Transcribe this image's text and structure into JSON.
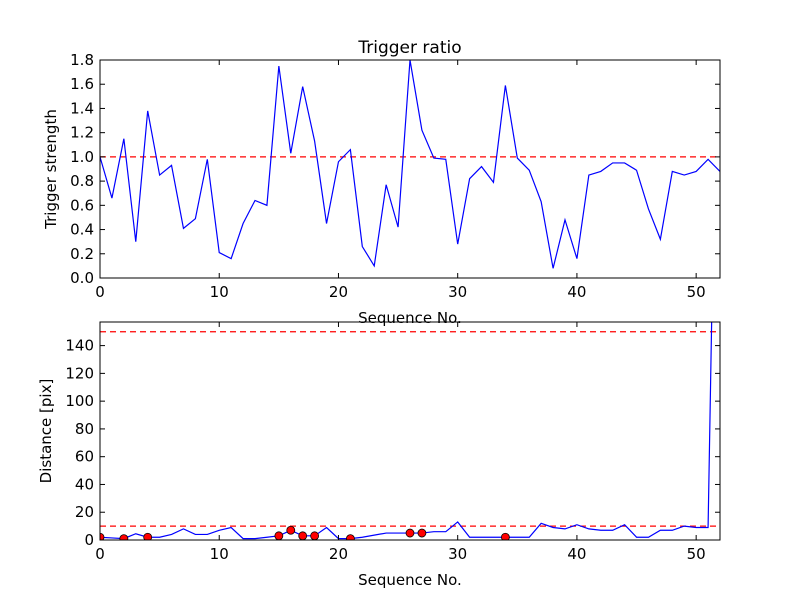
{
  "chart_data": [
    {
      "type": "line",
      "title": "Trigger ratio",
      "xlabel": "Sequence No.",
      "ylabel": "Trigger strength",
      "xlim": [
        0,
        52
      ],
      "ylim": [
        0.0,
        1.8
      ],
      "xticks": [
        0,
        10,
        20,
        30,
        40,
        50
      ],
      "yticks": [
        0.0,
        0.2,
        0.4,
        0.6,
        0.8,
        1.0,
        1.2,
        1.4,
        1.6,
        1.8
      ],
      "xtick_labels": [
        "0",
        "10",
        "20",
        "30",
        "40",
        "50"
      ],
      "ytick_labels": [
        "0.0",
        "0.2",
        "0.4",
        "0.6",
        "0.8",
        "1.0",
        "1.2",
        "1.4",
        "1.6",
        "1.8"
      ],
      "threshold": 1.0,
      "threshold_color": "#ff0000",
      "series": [
        {
          "name": "trigger strength",
          "color": "#0000ff",
          "x": [
            0,
            1,
            2,
            3,
            4,
            5,
            6,
            7,
            8,
            9,
            10,
            11,
            12,
            13,
            14,
            15,
            16,
            17,
            18,
            19,
            20,
            21,
            22,
            23,
            24,
            25,
            26,
            27,
            28,
            29,
            30,
            31,
            32,
            33,
            34,
            35,
            36,
            37,
            38,
            39,
            40,
            41,
            42,
            43,
            44,
            45,
            46,
            47,
            48,
            49,
            50,
            51,
            52
          ],
          "values": [
            1.0,
            0.66,
            1.15,
            0.3,
            1.38,
            0.85,
            0.93,
            0.41,
            0.49,
            0.98,
            0.21,
            0.16,
            0.45,
            0.64,
            0.6,
            1.75,
            1.03,
            1.58,
            1.13,
            0.45,
            0.96,
            1.06,
            0.26,
            0.1,
            0.77,
            0.42,
            1.8,
            1.22,
            0.99,
            0.98,
            0.28,
            0.82,
            0.92,
            0.79,
            1.59,
            0.99,
            0.89,
            0.63,
            0.08,
            0.48,
            0.16,
            0.85,
            0.88,
            0.95,
            0.95,
            0.89,
            0.57,
            0.32,
            0.88,
            0.85,
            0.88,
            0.98,
            0.88
          ]
        }
      ]
    },
    {
      "type": "line",
      "title": "",
      "xlabel": "Sequence No.",
      "ylabel": "Distance [pix]",
      "xlim": [
        0,
        52
      ],
      "ylim": [
        0,
        157
      ],
      "xticks": [
        0,
        10,
        20,
        30,
        40,
        50
      ],
      "yticks": [
        0,
        20,
        40,
        60,
        80,
        100,
        120,
        140
      ],
      "xtick_labels": [
        "0",
        "10",
        "20",
        "30",
        "40",
        "50"
      ],
      "ytick_labels": [
        "0",
        "20",
        "40",
        "60",
        "80",
        "100",
        "120",
        "140"
      ],
      "thresholds": [
        10,
        150
      ],
      "threshold_color": "#ff0000",
      "series": [
        {
          "name": "distance",
          "color": "#0000ff",
          "x": [
            0,
            1,
            2,
            3,
            4,
            5,
            6,
            7,
            8,
            9,
            10,
            11,
            12,
            13,
            14,
            15,
            16,
            17,
            18,
            19,
            20,
            21,
            22,
            23,
            24,
            25,
            26,
            27,
            28,
            29,
            30,
            31,
            32,
            33,
            34,
            35,
            36,
            37,
            38,
            39,
            40,
            41,
            42,
            43,
            44,
            45,
            46,
            47,
            48,
            49,
            50,
            51,
            51.3
          ],
          "values": [
            2,
            1.5,
            1,
            4.5,
            2,
            2,
            4,
            8,
            4,
            4,
            7,
            9,
            1,
            1,
            2,
            3,
            7,
            3,
            3,
            9,
            1,
            1,
            2,
            3.5,
            5,
            5,
            5,
            5,
            6,
            6,
            13,
            2,
            2,
            2,
            2,
            2,
            2,
            12,
            9,
            8,
            11,
            8,
            7,
            7,
            11,
            2,
            2,
            7,
            7,
            10,
            9,
            9,
            157
          ]
        },
        {
          "name": "triggered",
          "color": "#ff0000",
          "type": "scatter",
          "x": [
            0,
            2,
            4,
            15,
            16,
            17,
            18,
            21,
            26,
            27,
            34
          ],
          "values": [
            2,
            1,
            2,
            3,
            7,
            3,
            3,
            1,
            5,
            5,
            2
          ]
        }
      ]
    }
  ]
}
